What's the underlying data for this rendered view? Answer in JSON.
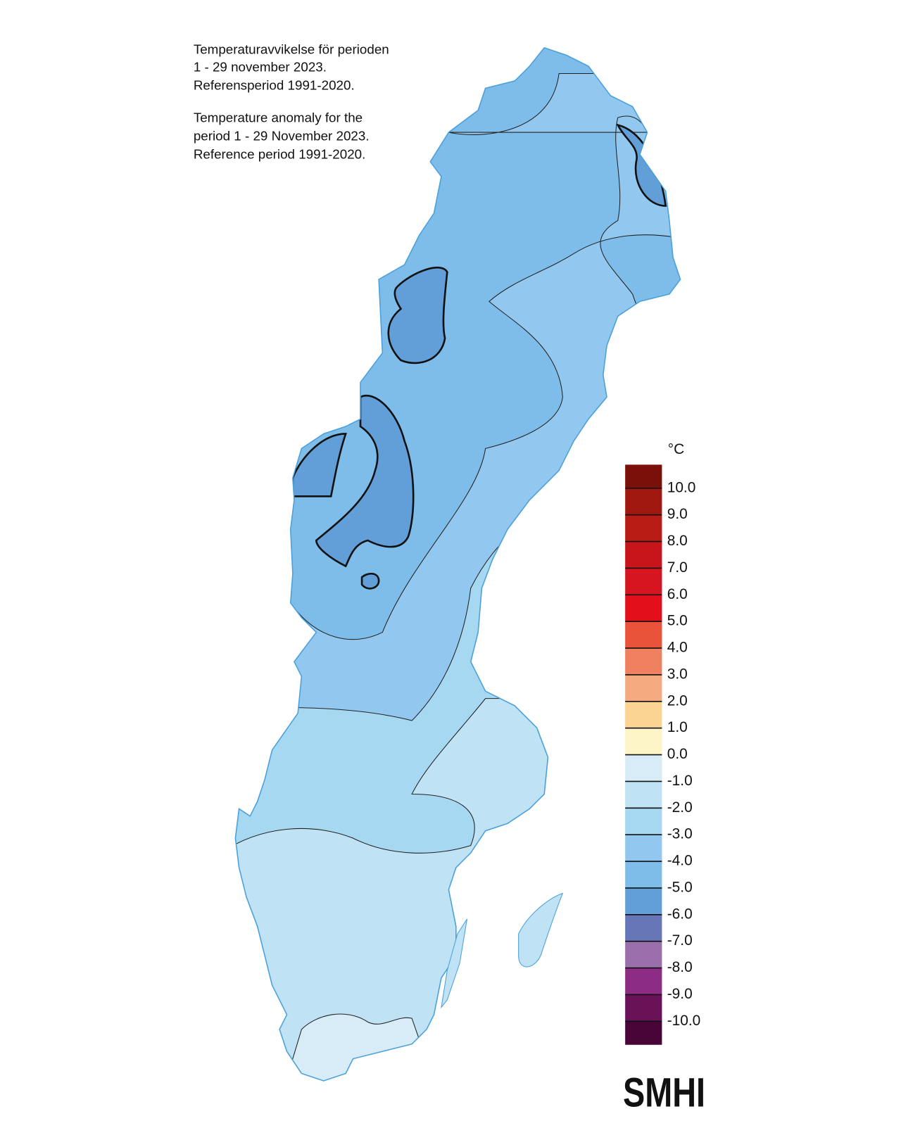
{
  "header": {
    "lines_sv": [
      "Temperaturavvikelse för perioden",
      "1 - 29 november 2023.",
      "Referensperiod 1991-2020."
    ],
    "lines_en": [
      "Temperature anomaly for the",
      "period 1 - 29 November 2023.",
      "Reference period 1991-2020."
    ]
  },
  "legend": {
    "unit": "°C",
    "ticks": [
      {
        "value": 10,
        "label": "10.0"
      },
      {
        "value": 9,
        "label": "9.0"
      },
      {
        "value": 8,
        "label": "8.0"
      },
      {
        "value": 7,
        "label": "7.0"
      },
      {
        "value": 6,
        "label": "6.0"
      },
      {
        "value": 5,
        "label": "5.0"
      },
      {
        "value": 4,
        "label": "4.0"
      },
      {
        "value": 3,
        "label": "3.0"
      },
      {
        "value": 2,
        "label": "2.0"
      },
      {
        "value": 1,
        "label": "1.0"
      },
      {
        "value": 0,
        "label": "0.0"
      },
      {
        "value": -1,
        "label": "-1.0"
      },
      {
        "value": -2,
        "label": "-2.0"
      },
      {
        "value": -3,
        "label": "-3.0"
      },
      {
        "value": -4,
        "label": "-4.0"
      },
      {
        "value": -5,
        "label": "-5.0"
      },
      {
        "value": -6,
        "label": "-6.0"
      },
      {
        "value": -7,
        "label": "-7.0"
      },
      {
        "value": -8,
        "label": "-8.0"
      },
      {
        "value": -9,
        "label": "-9.0"
      },
      {
        "value": -10,
        "label": "-10.0"
      }
    ],
    "colors": [
      "#7b0f0a",
      "#a01810",
      "#b81c14",
      "#c8151b",
      "#d61520",
      "#e3101c",
      "#e8533a",
      "#ef8060",
      "#f5aa80",
      "#fbd392",
      "#fdf4c8",
      "#d8ecf7",
      "#bfe2f4",
      "#a6d8f2",
      "#92c8ef",
      "#7ebde9",
      "#629fd9",
      "#6676b6",
      "#9a6fac",
      "#8c2c85",
      "#6a1258",
      "#4a0538"
    ]
  },
  "logo": "SMHI"
}
